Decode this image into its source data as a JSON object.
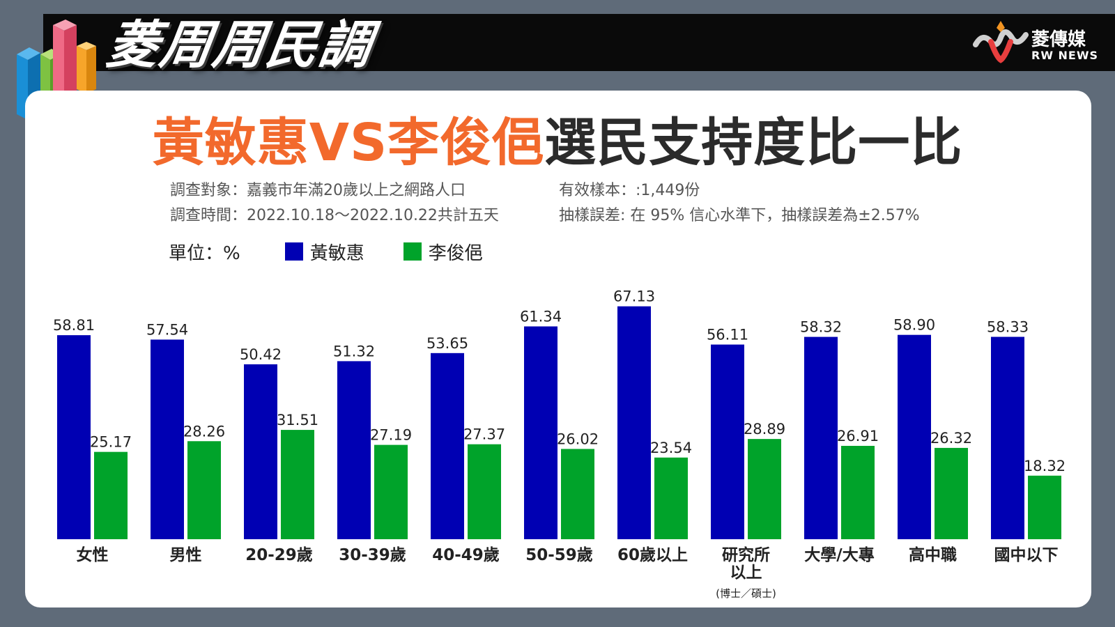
{
  "header": {
    "brand_title": "菱周周民調",
    "logo_cn": "菱傳媒",
    "logo_en": "RW NEWS"
  },
  "main_title": {
    "part1": "黃敏惠VS李俊俋",
    "part2": "選民支持度比一比"
  },
  "meta": {
    "target": "調查對象：嘉義市年滿20歲以上之網路人口",
    "period": "調查時間：2022.10.18～2022.10.22共計五天",
    "sample": "有效樣本：:1,449份",
    "error": "抽樣誤差: 在 95% 信心水準下，抽樣誤差為±2.57%"
  },
  "legend": {
    "unit": "單位：%"
  },
  "colors": {
    "series1": "#0000b3",
    "series2": "#00a32a",
    "accent": "#f2692c"
  },
  "chart_data": {
    "type": "bar",
    "categories": [
      "女性",
      "男性",
      "20-29歲",
      "30-39歲",
      "40-49歲",
      "50-59歲",
      "60歲以上",
      "研究所\n以上",
      "大學/大專",
      "高中職",
      "國中以下"
    ],
    "category_notes": [
      "",
      "",
      "",
      "",
      "",
      "",
      "",
      "(博士／碩士)",
      "",
      "",
      ""
    ],
    "series": [
      {
        "name": "黃敏惠",
        "values": [
          58.81,
          57.54,
          50.42,
          51.32,
          53.65,
          61.34,
          67.13,
          56.11,
          58.32,
          58.9,
          58.33
        ]
      },
      {
        "name": "李俊俋",
        "values": [
          25.17,
          28.26,
          31.51,
          27.19,
          27.37,
          26.02,
          23.54,
          28.89,
          26.91,
          26.32,
          18.32
        ]
      }
    ],
    "value_labels": [
      [
        "58.81",
        "57.54",
        "50.42",
        "51.32",
        "53.65",
        "61.34",
        "67.13",
        "56.11",
        "58.32",
        "58.90",
        "58.33"
      ],
      [
        "25.17",
        "28.26",
        "31.51",
        "27.19",
        "27.37",
        "26.02",
        "23.54",
        "28.89",
        "26.91",
        "26.32",
        "18.32"
      ]
    ],
    "ylim": [
      0,
      70
    ],
    "grid": false,
    "legend_position": "top-left"
  }
}
